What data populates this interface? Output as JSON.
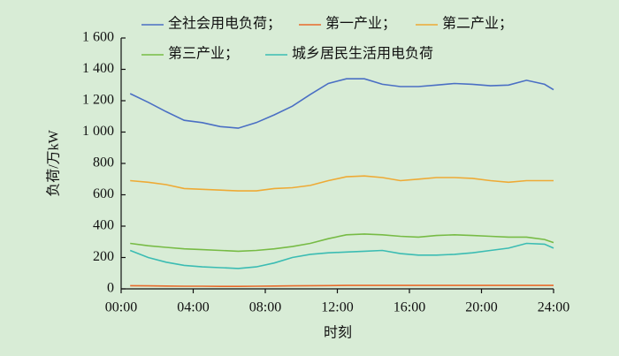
{
  "chart_data": {
    "type": "line",
    "x_label": "时刻",
    "y_label": "负荷/万kW",
    "x": [
      0.5,
      1.5,
      2.5,
      3.5,
      4.5,
      5.5,
      6.5,
      7.5,
      8.5,
      9.5,
      10.5,
      11.5,
      12.5,
      13.5,
      14.5,
      15.5,
      16.5,
      17.5,
      18.5,
      19.5,
      20.5,
      21.5,
      22.5,
      23.5,
      24
    ],
    "series": [
      {
        "name": "全社会用电负荷；",
        "color": "#4a6fc4",
        "values": [
          1245,
          1190,
          1130,
          1075,
          1060,
          1035,
          1025,
          1060,
          1110,
          1165,
          1240,
          1310,
          1340,
          1340,
          1305,
          1290,
          1290,
          1300,
          1310,
          1305,
          1295,
          1300,
          1330,
          1305,
          1270
        ]
      },
      {
        "name": "第一产业；",
        "color": "#e86a2a",
        "values": [
          20,
          19,
          18,
          17,
          17,
          16,
          16,
          17,
          18,
          19,
          20,
          21,
          22,
          22,
          22,
          22,
          22,
          22,
          22,
          22,
          22,
          22,
          22,
          22,
          22
        ]
      },
      {
        "name": "第二产业；",
        "color": "#eeaa35",
        "values": [
          690,
          680,
          665,
          640,
          635,
          630,
          625,
          625,
          640,
          645,
          660,
          690,
          715,
          720,
          710,
          690,
          700,
          710,
          710,
          705,
          690,
          680,
          690,
          690,
          690
        ]
      },
      {
        "name": "第三产业；",
        "color": "#77bb45",
        "values": [
          290,
          275,
          265,
          255,
          250,
          245,
          240,
          245,
          255,
          270,
          290,
          320,
          345,
          350,
          345,
          335,
          330,
          340,
          345,
          340,
          335,
          330,
          330,
          315,
          295
        ]
      },
      {
        "name": "城乡居民生活用电负荷",
        "color": "#3bbcb3",
        "values": [
          245,
          200,
          170,
          150,
          140,
          135,
          130,
          140,
          165,
          200,
          220,
          230,
          235,
          240,
          245,
          225,
          215,
          215,
          220,
          230,
          245,
          260,
          290,
          285,
          260
        ]
      }
    ],
    "xlim": [
      0,
      24
    ],
    "xticks": [
      {
        "value": 0,
        "label": "00:00"
      },
      {
        "value": 4,
        "label": "04:00"
      },
      {
        "value": 8,
        "label": "08:00"
      },
      {
        "value": 12,
        "label": "12:00"
      },
      {
        "value": 16,
        "label": "16:00"
      },
      {
        "value": 20,
        "label": "20:00"
      },
      {
        "value": 24,
        "label": "24:00"
      }
    ],
    "ylim": [
      0,
      1600
    ],
    "yticks": [
      0,
      200,
      400,
      600,
      800,
      {
        "value": 1000,
        "label": "1 000"
      },
      {
        "value": 1200,
        "label": "1 200"
      },
      {
        "value": 1400,
        "label": "1 400"
      },
      {
        "value": 1600,
        "label": "1 600"
      }
    ],
    "grid": false,
    "legend": "top"
  }
}
